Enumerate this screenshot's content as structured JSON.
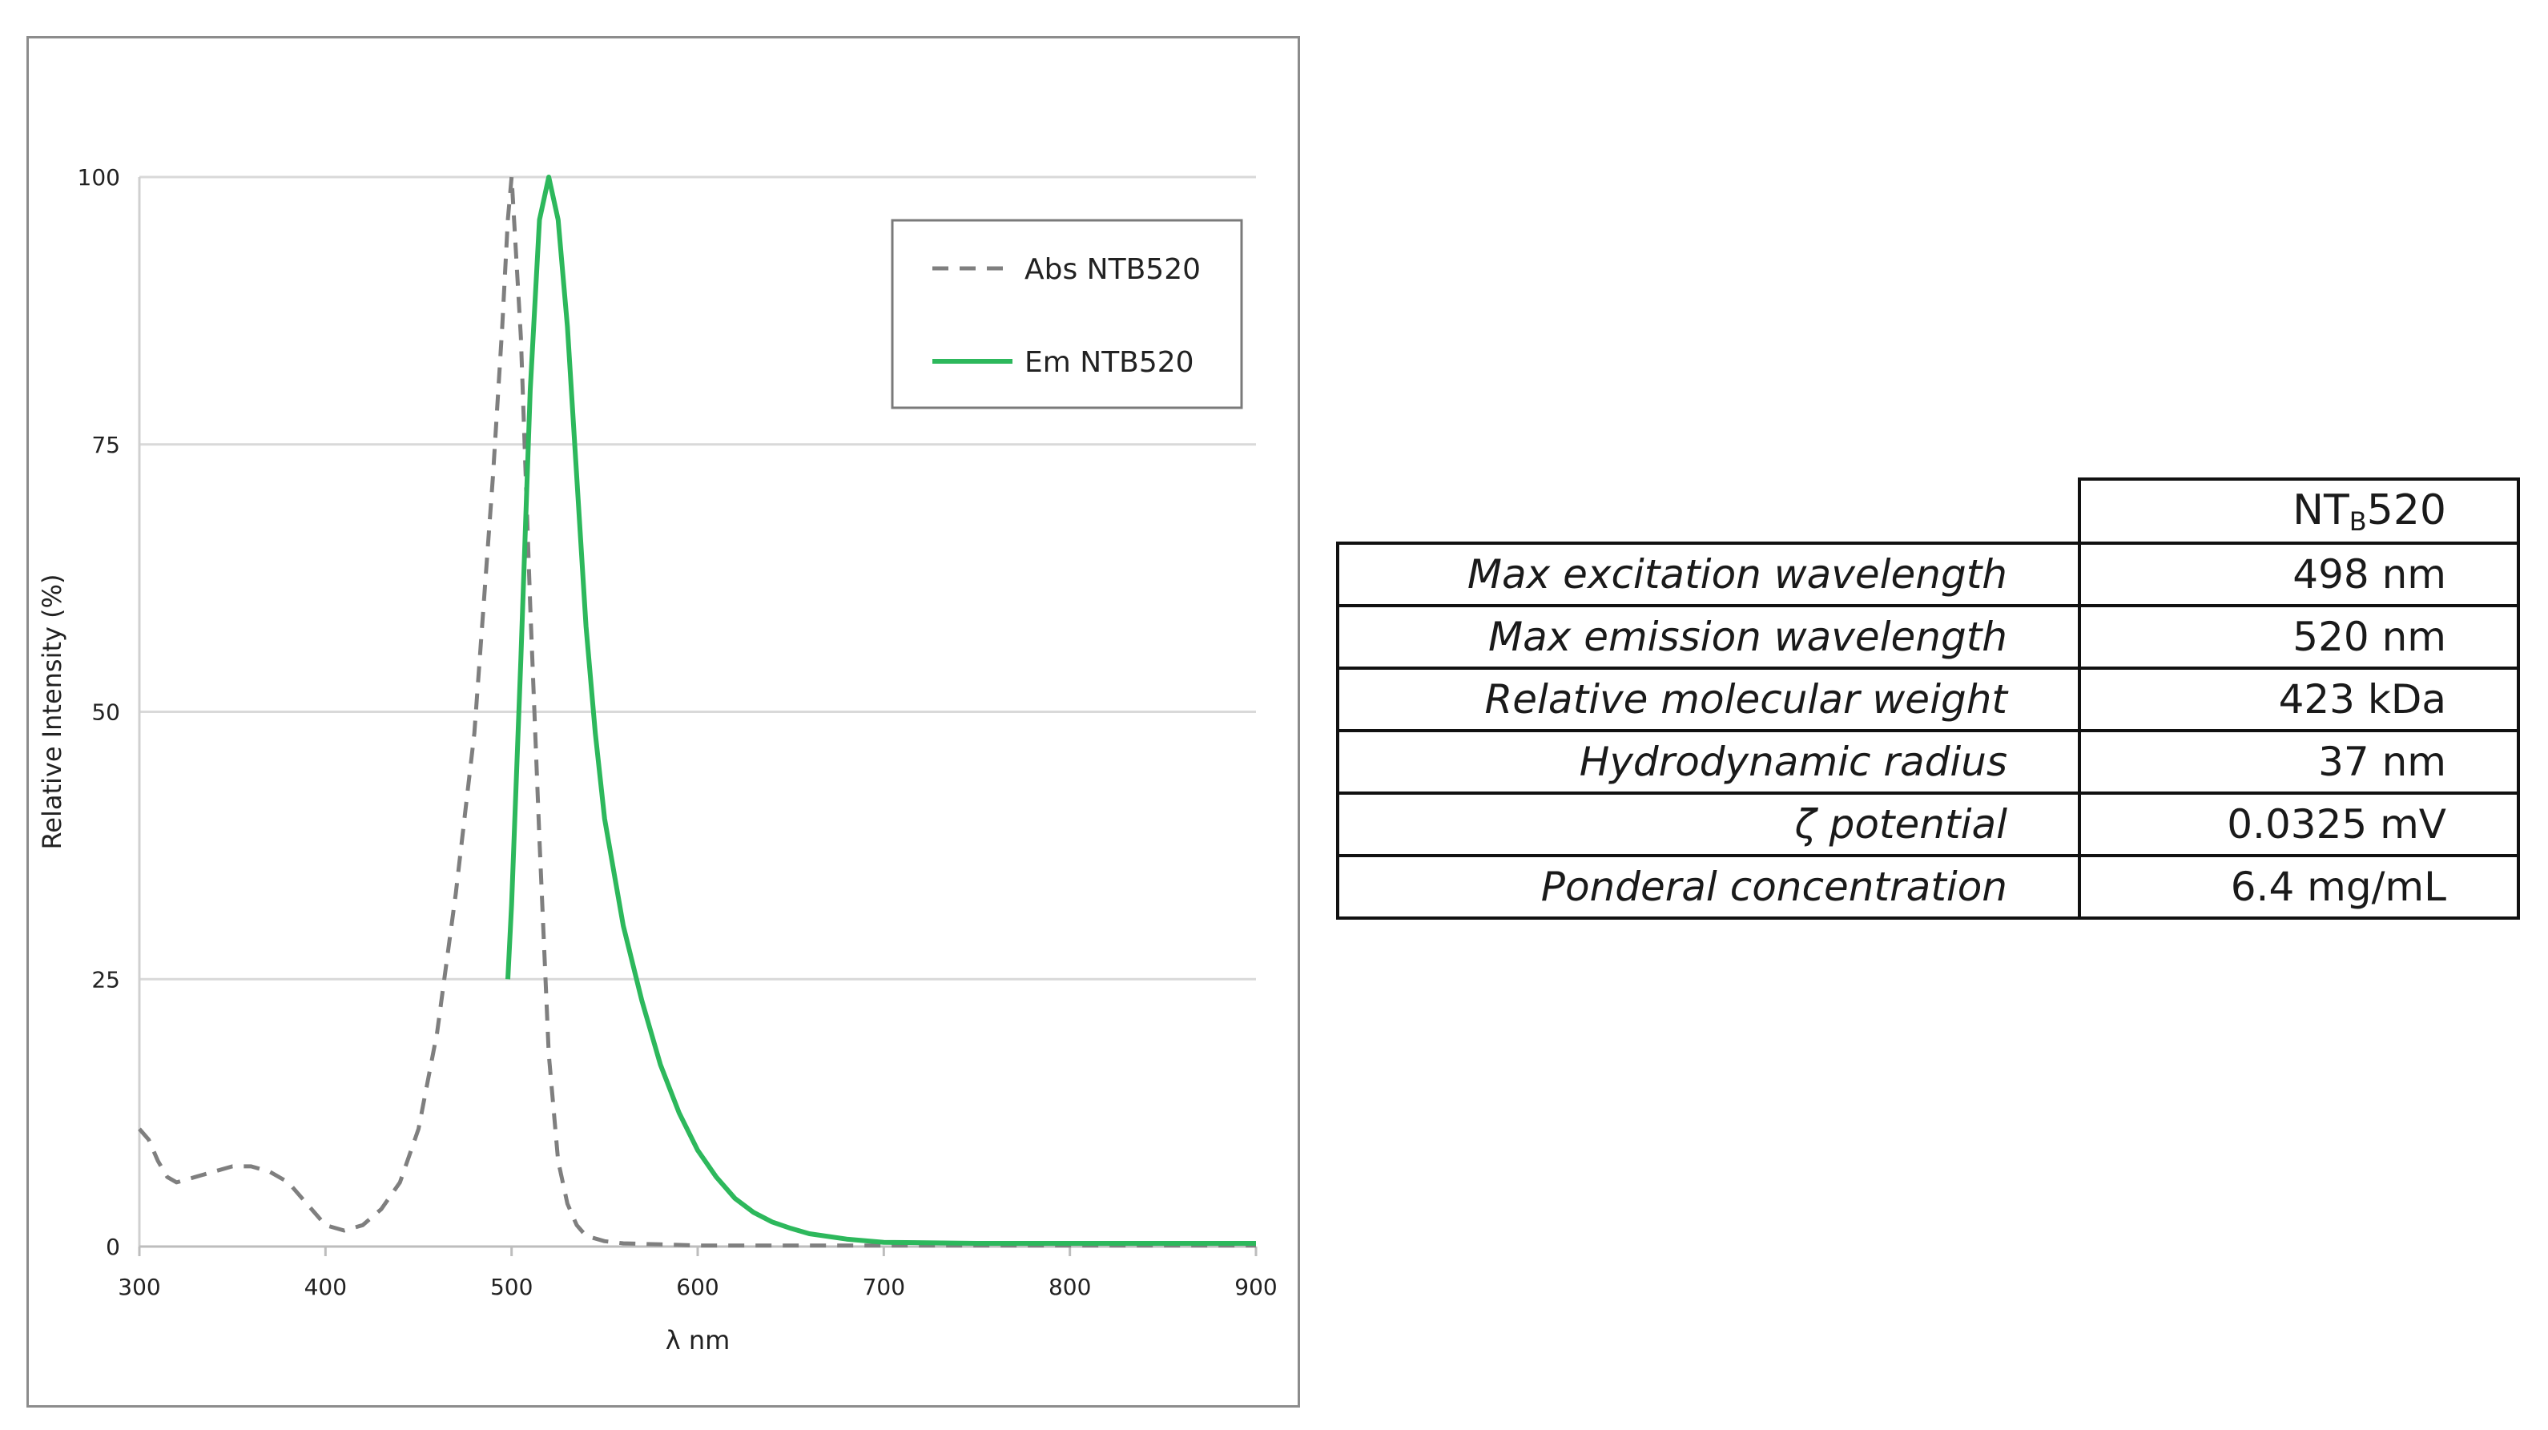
{
  "chart_data": {
    "type": "line",
    "xlabel": "λ nm",
    "ylabel": "Relative Intensity (%)",
    "xlim": [
      300,
      900
    ],
    "ylim": [
      0,
      100
    ],
    "x_ticks": [
      "300",
      "400",
      "500",
      "600",
      "700",
      "800",
      "900"
    ],
    "y_ticks": [
      "0",
      "25",
      "50",
      "75",
      "100"
    ],
    "grid": "horizontal",
    "legend_position": "top-right",
    "series": [
      {
        "name": "Abs NTB520",
        "style": "dashed",
        "color": "#7f7f7f",
        "x": [
          300,
          305,
          310,
          315,
          320,
          330,
          340,
          350,
          360,
          370,
          380,
          390,
          400,
          410,
          420,
          430,
          440,
          450,
          460,
          470,
          480,
          485,
          490,
          495,
          498,
          500,
          505,
          510,
          515,
          520,
          525,
          530,
          535,
          540,
          550,
          560,
          580,
          600,
          650,
          700,
          800,
          900
        ],
        "y": [
          11,
          10,
          8,
          6.5,
          6,
          6.5,
          7,
          7.5,
          7.5,
          7,
          6,
          4,
          2,
          1.5,
          2,
          3.5,
          6,
          11,
          20,
          33,
          48,
          60,
          72,
          86,
          96,
          100,
          85,
          60,
          38,
          18,
          8,
          4,
          2,
          1,
          0.5,
          0.3,
          0.2,
          0.1,
          0.1,
          0.1,
          0.1,
          0.1
        ]
      },
      {
        "name": "Em NTB520",
        "style": "solid",
        "color": "#2db85c",
        "x": [
          498,
          500,
          505,
          510,
          515,
          520,
          525,
          530,
          535,
          540,
          545,
          550,
          560,
          570,
          580,
          590,
          600,
          610,
          620,
          630,
          640,
          650,
          660,
          680,
          700,
          750,
          800,
          850,
          900
        ],
        "y": [
          25,
          32,
          55,
          80,
          96,
          100,
          96,
          86,
          72,
          58,
          48,
          40,
          30,
          23,
          17,
          12.5,
          9,
          6.5,
          4.5,
          3.2,
          2.3,
          1.7,
          1.2,
          0.7,
          0.4,
          0.3,
          0.3,
          0.3,
          0.3
        ]
      }
    ]
  },
  "table": {
    "header": {
      "name_main": "NT",
      "name_sub": "B",
      "name_suffix": "520"
    },
    "rows": [
      {
        "label": "Max excitation wavelength",
        "value": "498 nm"
      },
      {
        "label": "Max emission wavelength",
        "value": "520 nm"
      },
      {
        "label": "Relative molecular weight",
        "value": "423 kDa"
      },
      {
        "label": "Hydrodynamic radius",
        "value": "37 nm"
      },
      {
        "label": "ζ potential",
        "value": "0.0325 mV"
      },
      {
        "label": "Ponderal concentration",
        "value": "6.4 mg/mL"
      }
    ]
  }
}
